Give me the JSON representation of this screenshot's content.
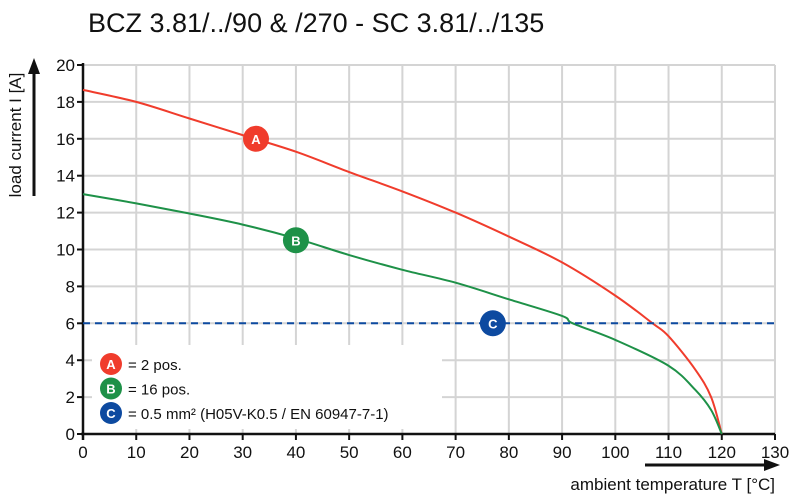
{
  "chart_data": {
    "type": "line",
    "title": "BCZ 3.81/../90 & /270 - SC 3.81/../135",
    "xlabel": "ambient temperature T [°C]",
    "ylabel": "load current I [A]",
    "xlim": [
      0,
      130
    ],
    "ylim": [
      0,
      20
    ],
    "xticks": [
      0,
      10,
      20,
      30,
      40,
      50,
      60,
      70,
      80,
      90,
      100,
      110,
      120,
      130
    ],
    "yticks": [
      0,
      2,
      4,
      6,
      8,
      10,
      12,
      14,
      16,
      18,
      20
    ],
    "grid": true,
    "colors": {
      "A": "#f03c2c",
      "B": "#1e9148",
      "C": "#0d4aa0",
      "grid": "#d4d4d4"
    },
    "series": [
      {
        "key": "A",
        "marker_label": "A",
        "marker_at": [
          32.5,
          16
        ],
        "x": [
          0,
          10,
          20,
          30,
          40,
          50,
          60,
          70,
          80,
          90,
          100,
          107,
          110,
          115,
          118,
          120
        ],
        "y": [
          18.65,
          18.0,
          17.1,
          16.2,
          15.3,
          14.2,
          13.15,
          12.0,
          10.7,
          9.3,
          7.5,
          6.0,
          5.3,
          3.5,
          2.0,
          0
        ]
      },
      {
        "key": "B",
        "marker_label": "B",
        "marker_at": [
          40,
          10.5
        ],
        "x": [
          0,
          10,
          20,
          30,
          40,
          50,
          60,
          70,
          80,
          90,
          92,
          100,
          110,
          115,
          118,
          120
        ],
        "y": [
          13.0,
          12.5,
          11.95,
          11.35,
          10.6,
          9.7,
          8.9,
          8.2,
          7.3,
          6.4,
          6.0,
          5.1,
          3.7,
          2.4,
          1.3,
          0
        ]
      },
      {
        "key": "C",
        "marker_label": "C",
        "marker_at": [
          77,
          6
        ],
        "style": "dashed",
        "x": [
          0,
          130
        ],
        "y": [
          6,
          6
        ]
      }
    ],
    "legend": [
      {
        "key": "A",
        "label": "A",
        "text": "= 2 pos."
      },
      {
        "key": "B",
        "label": "B",
        "text": "= 16 pos."
      },
      {
        "key": "C",
        "label": "C",
        "text": "= 0.5 mm² (H05V-K0.5 / EN 60947-7-1)"
      }
    ],
    "legend_position": "bottom-left"
  }
}
